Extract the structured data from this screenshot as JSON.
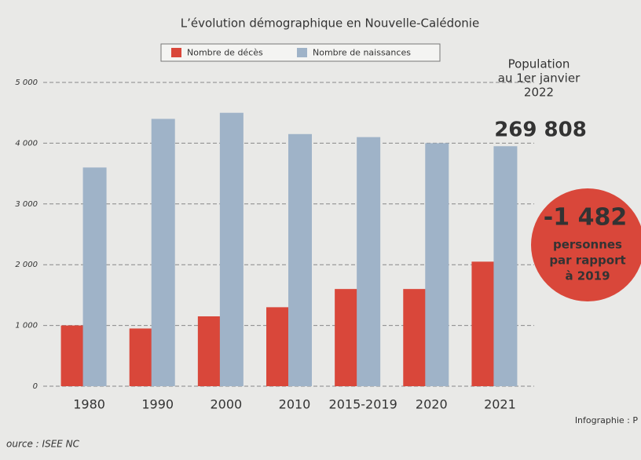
{
  "chart_data": {
    "type": "bar",
    "title": "L’évolution démographique en Nouvelle-Calédonie",
    "categories": [
      "1980",
      "1990",
      "2000",
      "2010",
      "2015-2019",
      "2020",
      "2021"
    ],
    "series": [
      {
        "name": "Nombre de décès",
        "color": "#d9473a",
        "values": [
          1000,
          950,
          1150,
          1300,
          1600,
          1600,
          2050
        ]
      },
      {
        "name": "Nombre de naissances",
        "color": "#9fb3c8",
        "values": [
          3600,
          4400,
          4500,
          4150,
          4100,
          4000,
          3950
        ]
      }
    ],
    "ylim": [
      0,
      5000
    ],
    "yticks": [
      0,
      {
        "value": 1000,
        "label": "1 000"
      },
      {
        "value": 2000,
        "label": "2 000"
      },
      {
        "value": 3000,
        "label": "3 000"
      },
      {
        "value": 4000,
        "label": "4 000"
      },
      {
        "value": 5000,
        "label": "5 000"
      }
    ],
    "grid": true,
    "annotations": {
      "population": [
        "Population",
        "au 1er janvier",
        "2022"
      ],
      "population_value": "269 808",
      "change": "-1 482",
      "change_text": [
        "personnes",
        "par rapport",
        "à 2019"
      ],
      "credit": "Infographie : P",
      "source": "ource : ISEE NC"
    }
  }
}
